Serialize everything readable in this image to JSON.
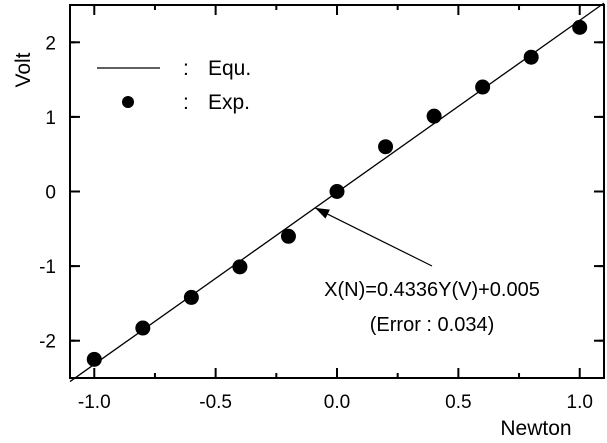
{
  "chart_data": {
    "type": "scatter",
    "xlabel": "Newton",
    "ylabel": "Volt",
    "xlim": [
      -1.1,
      1.1
    ],
    "ylim": [
      -2.5,
      2.5
    ],
    "x_ticks": [
      -1.0,
      -0.5,
      0.0,
      0.5,
      1.0
    ],
    "x_tick_labels": [
      "-1.0",
      "-0.5",
      "0.0",
      "0.5",
      "1.0"
    ],
    "y_ticks": [
      -2,
      -1,
      0,
      1,
      2
    ],
    "y_tick_labels": [
      "-2",
      "-1",
      "0",
      "1",
      "2"
    ],
    "grid": false,
    "legend_position": "top-left",
    "legend": [
      {
        "marker": "line",
        "sep": ":",
        "label": "Equ."
      },
      {
        "marker": "circle",
        "sep": ":",
        "label": "Exp."
      }
    ],
    "series": [
      {
        "name": "Equ.",
        "kind": "line",
        "x": [
          -1.1,
          1.1
        ],
        "y": [
          -2.548,
          2.525
        ]
      },
      {
        "name": "Exp.",
        "kind": "scatter",
        "x": [
          -1.0,
          -0.8,
          -0.6,
          -0.4,
          -0.2,
          0.0,
          0.2,
          0.4,
          0.6,
          0.8,
          1.0
        ],
        "y": [
          -2.25,
          -1.83,
          -1.42,
          -1.01,
          -0.6,
          0.0,
          0.6,
          1.01,
          1.4,
          1.8,
          2.2
        ]
      }
    ],
    "annotations": [
      {
        "text": "X(N)=0.4336Y(V)+0.005",
        "arrow_to": [
          -0.09,
          -0.22
        ]
      },
      {
        "text": "(Error : 0.034)"
      }
    ]
  }
}
